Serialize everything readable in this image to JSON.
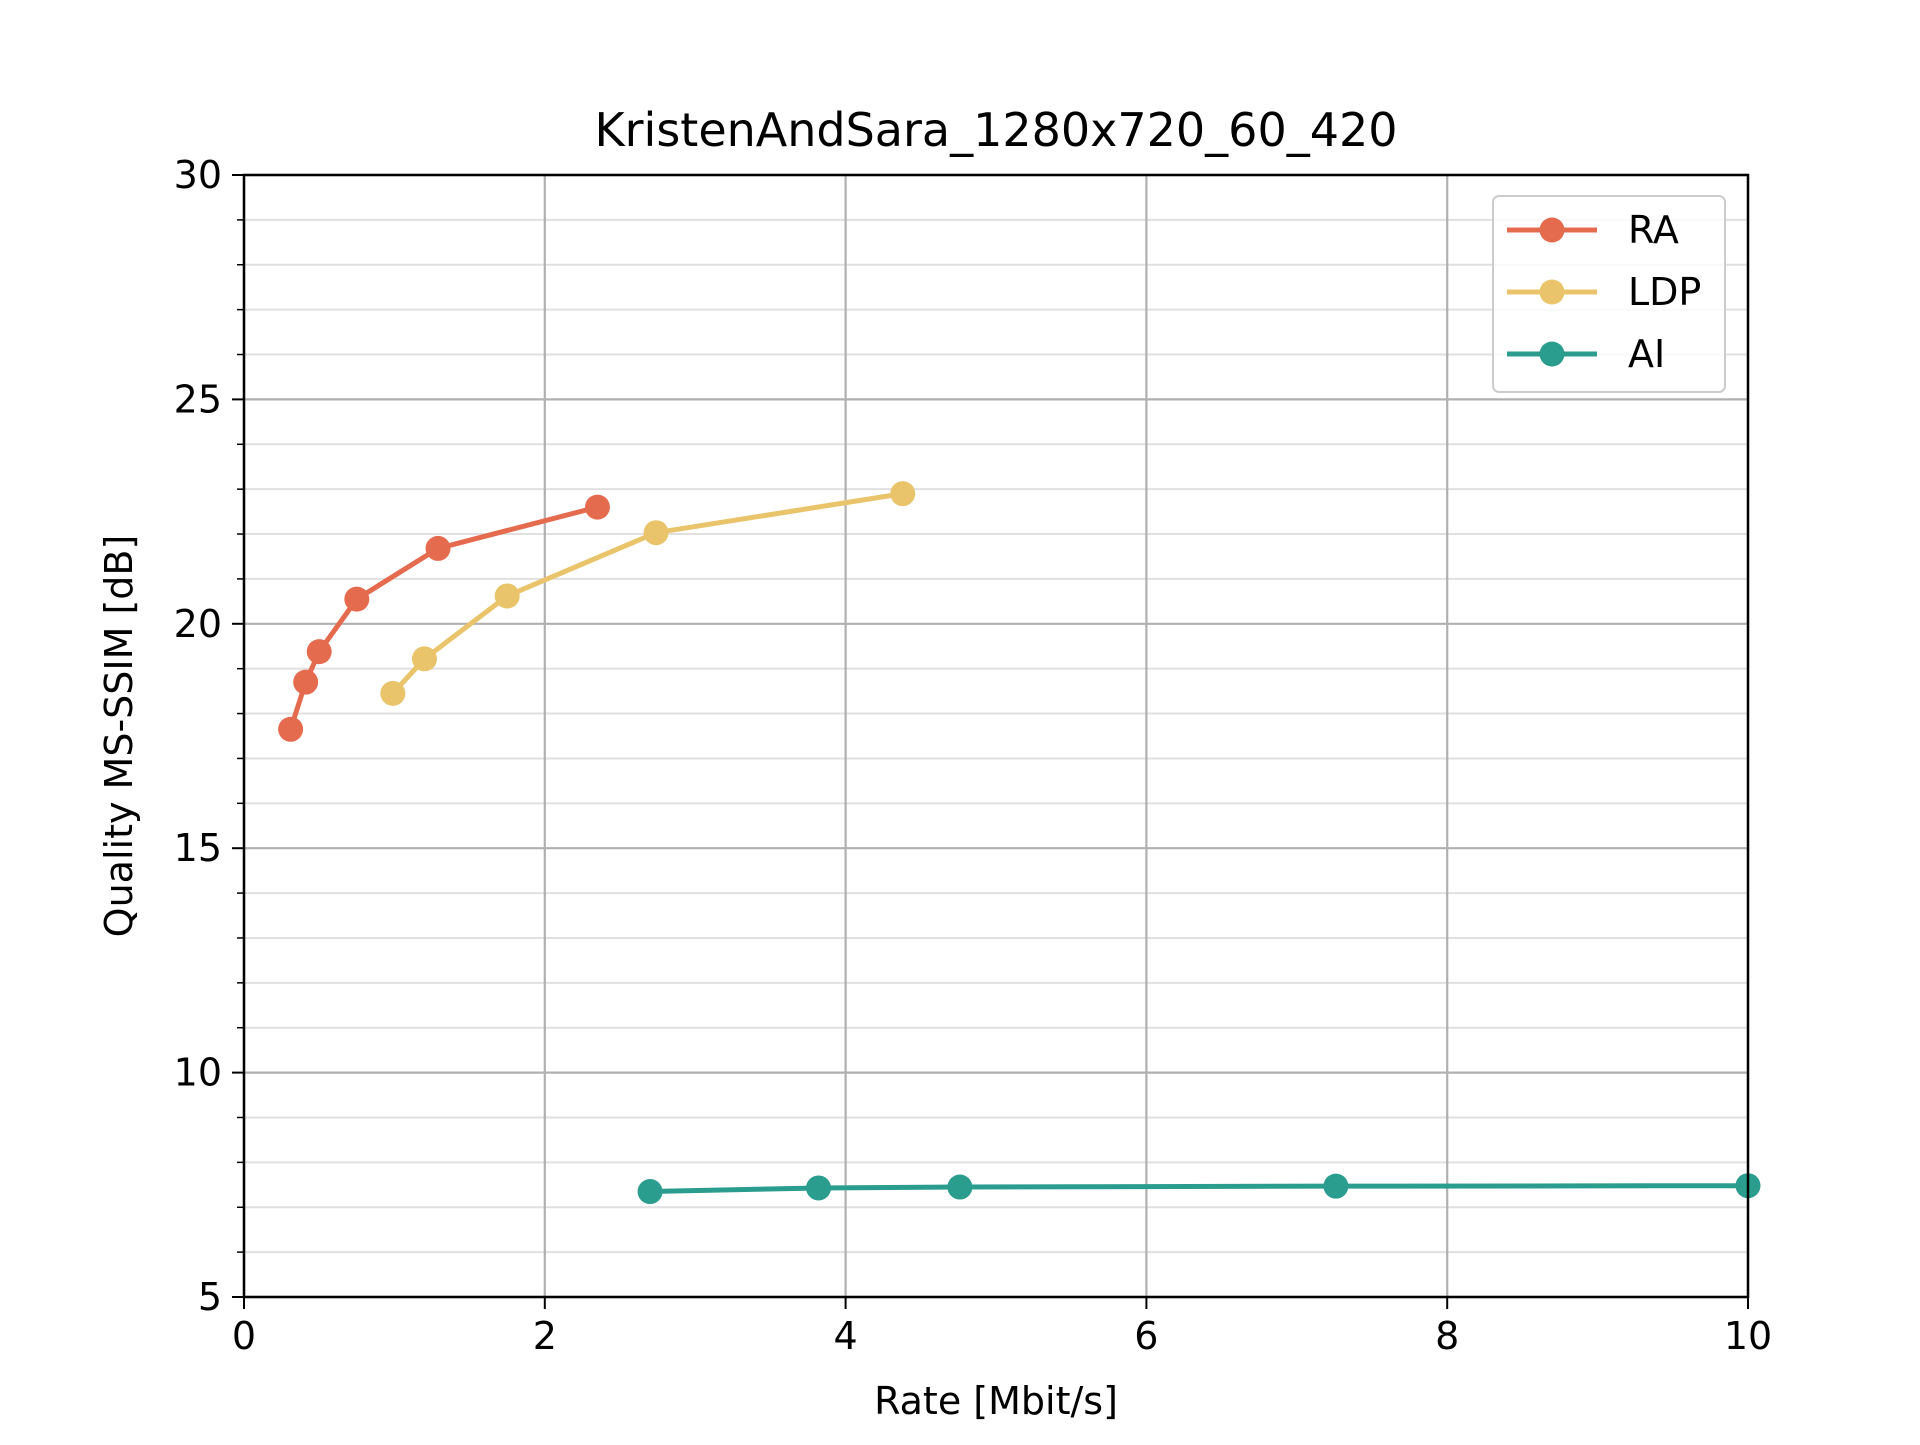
{
  "chart_data": {
    "type": "line",
    "title": "KristenAndSara_1280x720_60_420",
    "xlabel": "Rate [Mbit/s]",
    "ylabel": "Quality MS-SSIM [dB]",
    "xlim": [
      0,
      10
    ],
    "ylim": [
      5,
      30
    ],
    "xticks": [
      0,
      2,
      4,
      6,
      8,
      10
    ],
    "yticks": [
      5,
      10,
      15,
      20,
      25,
      30
    ],
    "y_minor_step": 1,
    "grid": true,
    "legend_position": "top-right",
    "series": [
      {
        "name": "RA",
        "color": "#e56b4e",
        "x": [
          0.31,
          0.41,
          0.5,
          0.75,
          1.29,
          2.35
        ],
        "y": [
          17.65,
          18.7,
          19.38,
          20.55,
          21.68,
          22.6
        ]
      },
      {
        "name": "LDP",
        "color": "#e9c46a",
        "x": [
          0.99,
          1.2,
          1.75,
          2.74,
          4.38
        ],
        "y": [
          18.45,
          19.22,
          20.62,
          22.03,
          22.9
        ]
      },
      {
        "name": "AI",
        "color": "#2a9d8f",
        "x": [
          2.7,
          3.82,
          4.76,
          7.26,
          10.0
        ],
        "y": [
          7.35,
          7.43,
          7.45,
          7.47,
          7.48
        ]
      }
    ]
  }
}
